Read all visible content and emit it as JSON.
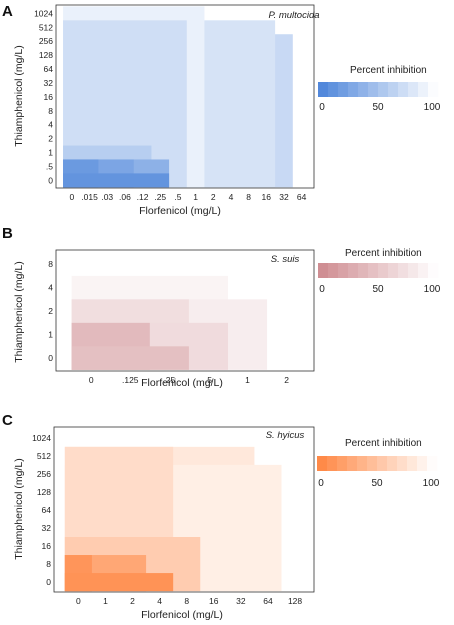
{
  "chart_data": [
    {
      "panel": "A",
      "type": "heatmap",
      "species": "P. multocida",
      "xlabel": "Florfenicol (mg/L)",
      "ylabel": "Thiamphenicol (mg/L)",
      "x_ticks": [
        "0",
        ".015",
        ".03",
        ".06",
        ".12",
        ".25",
        ".5",
        "1",
        "2",
        "4",
        "8",
        "16",
        "32",
        "64"
      ],
      "y_ticks": [
        "0",
        ".5",
        "1",
        "2",
        "4",
        "8",
        "16",
        "32",
        "64",
        "128",
        "256",
        "512",
        "1024"
      ],
      "color": "#3a78d6",
      "legend": {
        "title": "Percent inhibition",
        "ticks": [
          "0",
          "50",
          "100"
        ]
      },
      "regions": [
        {
          "x_to": 12,
          "y_to": 10,
          "inhibition": 70
        },
        {
          "x_to": 11,
          "y_to": 11,
          "inhibition": 78
        },
        {
          "x_to": 7,
          "y_to": 12,
          "inhibition": 90
        },
        {
          "x_to": 6,
          "y_to": 11,
          "inhibition": 74
        },
        {
          "x_to": 4,
          "y_to": 2,
          "inhibition": 60
        },
        {
          "x_to": 5,
          "y_to": 1,
          "inhibition": 35
        },
        {
          "x_to": 3,
          "y_to": 1,
          "inhibition": 25
        },
        {
          "x_to": 1,
          "y_to": 1,
          "inhibition": 15
        },
        {
          "x_to": 5,
          "y_to": 0,
          "inhibition": 10
        }
      ]
    },
    {
      "panel": "B",
      "type": "heatmap",
      "species": "S. suis",
      "xlabel": "Florfenicol (mg/L)",
      "ylabel": "Thiamphenicol (mg/L)",
      "x_ticks": [
        "0",
        ".125",
        ".25",
        ".5",
        "1",
        "2"
      ],
      "y_ticks": [
        "0",
        "1",
        "2",
        "4",
        "8"
      ],
      "color": "#c97f84",
      "legend": {
        "title": "Percent inhibition",
        "ticks": [
          "0",
          "50",
          "100"
        ]
      },
      "regions": [
        {
          "x_to": 3,
          "y_to": 3,
          "inhibition": 92
        },
        {
          "x_to": 4,
          "y_to": 2,
          "inhibition": 86
        },
        {
          "x_to": 2,
          "y_to": 2,
          "inhibition": 72
        },
        {
          "x_to": 3,
          "y_to": 1,
          "inhibition": 70
        },
        {
          "x_to": 1,
          "y_to": 1,
          "inhibition": 40
        },
        {
          "x_to": 2,
          "y_to": 0,
          "inhibition": 45
        }
      ]
    },
    {
      "panel": "C",
      "type": "heatmap",
      "species": "S. hyicus",
      "xlabel": "Florfenicol (mg/L)",
      "ylabel": "Thiamphenicol (mg/L)",
      "x_ticks": [
        "0",
        "1",
        "2",
        "4",
        "8",
        "16",
        "32",
        "64",
        "128"
      ],
      "y_ticks": [
        "0",
        "8",
        "16",
        "32",
        "64",
        "128",
        "256",
        "512",
        "1024"
      ],
      "color": "#ff7a2f",
      "legend": {
        "title": "Percent inhibition",
        "ticks": [
          "0",
          "50",
          "100"
        ]
      },
      "regions": [
        {
          "x_to": 6,
          "y_to": 7,
          "inhibition": 82
        },
        {
          "x_to": 7,
          "y_to": 6,
          "inhibition": 88
        },
        {
          "x_to": 3,
          "y_to": 7,
          "inhibition": 72
        },
        {
          "x_to": 4,
          "y_to": 2,
          "inhibition": 58
        },
        {
          "x_to": 2,
          "y_to": 1,
          "inhibition": 25
        },
        {
          "x_to": 0,
          "y_to": 1,
          "inhibition": 10
        },
        {
          "x_to": 3,
          "y_to": 0,
          "inhibition": 8
        }
      ]
    }
  ]
}
